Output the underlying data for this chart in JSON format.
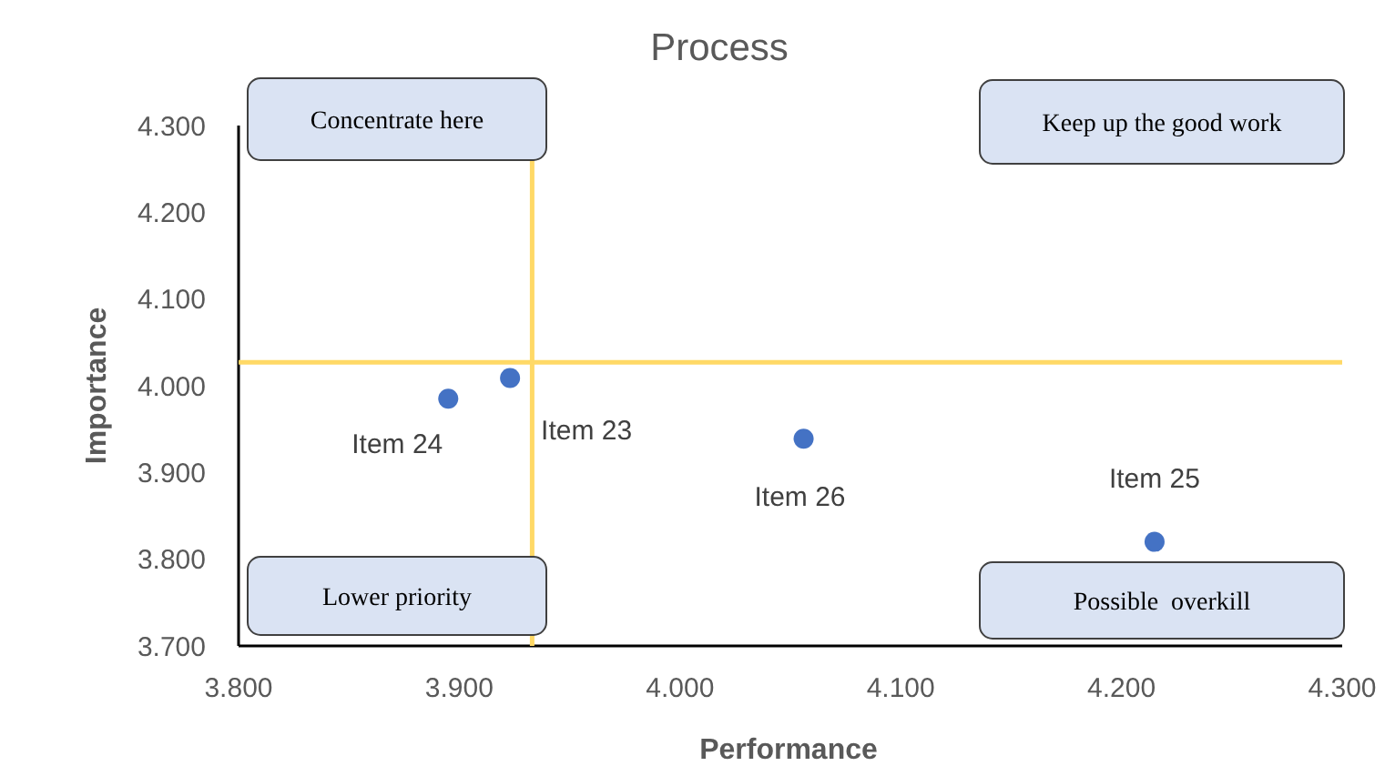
{
  "chart_data": {
    "type": "scatter",
    "title": "Process",
    "xlabel": "Performance",
    "ylabel": "Importance",
    "x": [
      3.923,
      3.895,
      4.215,
      4.056
    ],
    "series": [
      {
        "color": "#4472c4",
        "values": [
          4.009,
          3.985,
          3.82,
          3.939
        ]
      }
    ],
    "xlim": [
      3.8,
      4.3
    ],
    "xticks": [
      {
        "value": 3.8,
        "label": "3.800"
      },
      {
        "value": 3.9,
        "label": "3.900"
      },
      {
        "value": 4.0,
        "label": "4.000"
      },
      {
        "value": 4.1,
        "label": "4.100"
      },
      {
        "value": 4.2,
        "label": "4.200"
      },
      {
        "value": 4.3,
        "label": "4.300"
      }
    ],
    "ylim": [
      3.7,
      4.3
    ],
    "yticks": [
      {
        "value": 3.7,
        "label": "3.700"
      },
      {
        "value": 3.8,
        "label": "3.800"
      },
      {
        "value": 3.9,
        "label": "3.900"
      },
      {
        "value": 4.0,
        "label": "4.000"
      },
      {
        "value": 4.1,
        "label": "4.100"
      },
      {
        "value": 4.2,
        "label": "4.200"
      },
      {
        "value": 4.3,
        "label": "4.300"
      }
    ],
    "grid": false,
    "marker": "circle",
    "ref_lines": [
      {
        "axis": "x",
        "value": 3.933,
        "color": "#ffd966"
      },
      {
        "axis": "y",
        "value": 4.027,
        "color": "#ffd966"
      }
    ],
    "annotations": [
      {
        "text": "Item 23",
        "x": 3.923,
        "y": 4.009
      },
      {
        "text": "Item 24",
        "x": 3.895,
        "y": 3.985
      },
      {
        "text": "Item 25",
        "x": 4.215,
        "y": 3.82
      },
      {
        "text": "Item 26",
        "x": 4.056,
        "y": 3.939
      },
      "Concentrate here",
      "Keep up the good work",
      "Lower priority",
      "Possible  overkill"
    ]
  }
}
